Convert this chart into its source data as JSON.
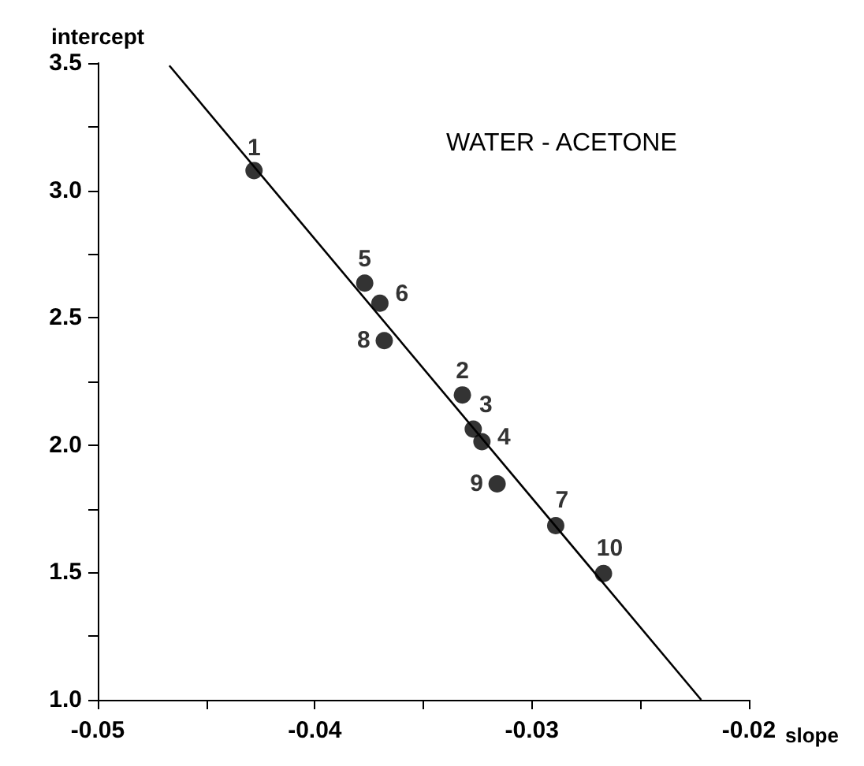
{
  "chart_data": {
    "type": "scatter",
    "title": "WATER - ACETONE",
    "xlabel": "slope",
    "ylabel": "intercept",
    "xlim": [
      -0.05,
      -0.02
    ],
    "ylim": [
      1.0,
      3.5
    ],
    "xticks": [
      -0.05,
      {
        "value": -0.045,
        "label": null
      },
      -0.04,
      {
        "value": -0.035,
        "label": null
      },
      -0.03,
      {
        "value": -0.025,
        "label": null
      },
      -0.02
    ],
    "yticks": [
      {
        "value": 1.0,
        "label": "1.0"
      },
      {
        "value": 1.25,
        "label": null
      },
      {
        "value": 1.5,
        "label": "1.5"
      },
      {
        "value": 1.75,
        "label": null
      },
      {
        "value": 2.0,
        "label": "2.0"
      },
      {
        "value": 2.25,
        "label": null
      },
      {
        "value": 2.5,
        "label": "2.5"
      },
      {
        "value": 2.75,
        "label": null
      },
      {
        "value": 3.0,
        "label": "3.0"
      },
      {
        "value": 3.25,
        "label": null
      },
      {
        "value": 3.5,
        "label": "3.5"
      }
    ],
    "series": [
      {
        "color": "#000000",
        "marker": "circle",
        "x": [
          -0.0428,
          -0.0332,
          -0.0327,
          -0.0323,
          -0.0377,
          -0.037,
          -0.0289,
          -0.0368,
          -0.0316,
          -0.0267
        ],
        "values": [
          3.078,
          2.197,
          2.063,
          2.013,
          2.636,
          2.557,
          1.684,
          2.41,
          1.848,
          1.496
        ]
      },
      {
        "type": "line",
        "color": "#000000",
        "marker": "none",
        "line_style": "solid",
        "x": [
          -0.0467,
          -0.0222
        ],
        "values": [
          3.49,
          1.0
        ]
      }
    ],
    "annotations": [
      {
        "text": "1",
        "x": -0.0428,
        "y": 3.078
      },
      {
        "text": "2",
        "x": -0.0332,
        "y": 2.197
      },
      {
        "text": "3",
        "x": -0.0327,
        "y": 2.063
      },
      {
        "text": "4",
        "x": -0.0323,
        "y": 2.013
      },
      {
        "text": "5",
        "x": -0.0377,
        "y": 2.636
      },
      {
        "text": "6",
        "x": -0.037,
        "y": 2.557
      },
      {
        "text": "7",
        "x": -0.0289,
        "y": 1.684
      },
      {
        "text": "8",
        "x": -0.0368,
        "y": 2.41
      },
      {
        "text": "9",
        "x": -0.0316,
        "y": 1.848
      },
      {
        "text": "10",
        "x": -0.0267,
        "y": 1.496
      }
    ]
  }
}
